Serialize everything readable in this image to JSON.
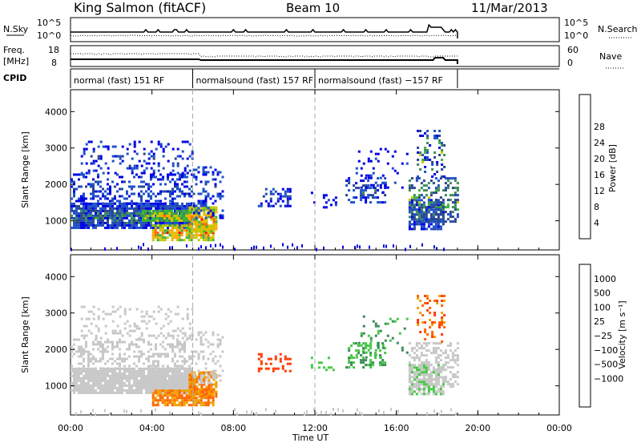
{
  "header": {
    "station_title": "King Salmon (fitACF)",
    "beam": "Beam 10",
    "date": "11/Mar/2013"
  },
  "colors": {
    "power_scale": [
      "#0000e6",
      "#1e50c8",
      "#28468c",
      "#3c8c5a",
      "#3cb43c",
      "#c8c800",
      "#ffaa00",
      "#ff6400",
      "#ff0000"
    ],
    "velocity_scale": [
      "#1e3cc8",
      "#2850a0",
      "#3c8c5a",
      "#46c846",
      "#c8c8c8",
      "#c8c8c8",
      "#f0a000",
      "#ff6400",
      "#ff3c00",
      "#e60000"
    ]
  },
  "chart_data": [
    {
      "type": "line",
      "name": "noise-panel",
      "left_label": "N.Sky",
      "right_label": "N.Search",
      "left_ticks": [
        "10^5",
        "10^0"
      ],
      "right_ticks": [
        "10^5",
        "10^0"
      ]
    },
    {
      "type": "line",
      "name": "frequency-panel",
      "left_label_line1": "Freq.",
      "left_label_line2": "[MHz]",
      "right_label": "Nave",
      "left_ticks": [
        "18",
        "8"
      ],
      "right_ticks": [
        "60",
        "0"
      ]
    },
    {
      "type": "table",
      "name": "cpid-strip",
      "label": "CPID",
      "segments": [
        {
          "label": "normal (fast) 151 RF",
          "start_hour": 0.0
        },
        {
          "label": "normalsound (fast) 157 RF",
          "start_hour": 6.0
        },
        {
          "label": "normalsound (fast) −157 RF",
          "start_hour": 12.0
        }
      ]
    },
    {
      "type": "heatmap",
      "name": "power-panel",
      "ylabel": "Slant Range [km]",
      "yticks": [
        "1000",
        "2000",
        "3000",
        "4000"
      ],
      "ylim": [
        200,
        4600
      ],
      "xlim": [
        0,
        24
      ],
      "colorbar_label": "Power [dB]",
      "colorbar_ticks": [
        "4",
        "8",
        "12",
        "16",
        "20",
        "24",
        "28"
      ],
      "vertical_markers_hours": [
        6,
        12
      ]
    },
    {
      "type": "heatmap",
      "name": "velocity-panel",
      "ylabel": "Slant Range [km]",
      "yticks": [
        "1000",
        "2000",
        "3000",
        "4000"
      ],
      "ylim": [
        200,
        4600
      ],
      "xlim": [
        0,
        24
      ],
      "colorbar_label": "Velocity [m s⁻¹]",
      "colorbar_ticks": [
        "1000",
        "500",
        "100",
        "25",
        "−25",
        "−100",
        "−500",
        "−1000"
      ],
      "vertical_markers_hours": [
        6,
        12
      ]
    }
  ],
  "time_axis": {
    "ticks": [
      "00:00",
      "04:00",
      "08:00",
      "12:00",
      "16:00",
      "20:00",
      "00:00"
    ],
    "label": "Time UT"
  }
}
